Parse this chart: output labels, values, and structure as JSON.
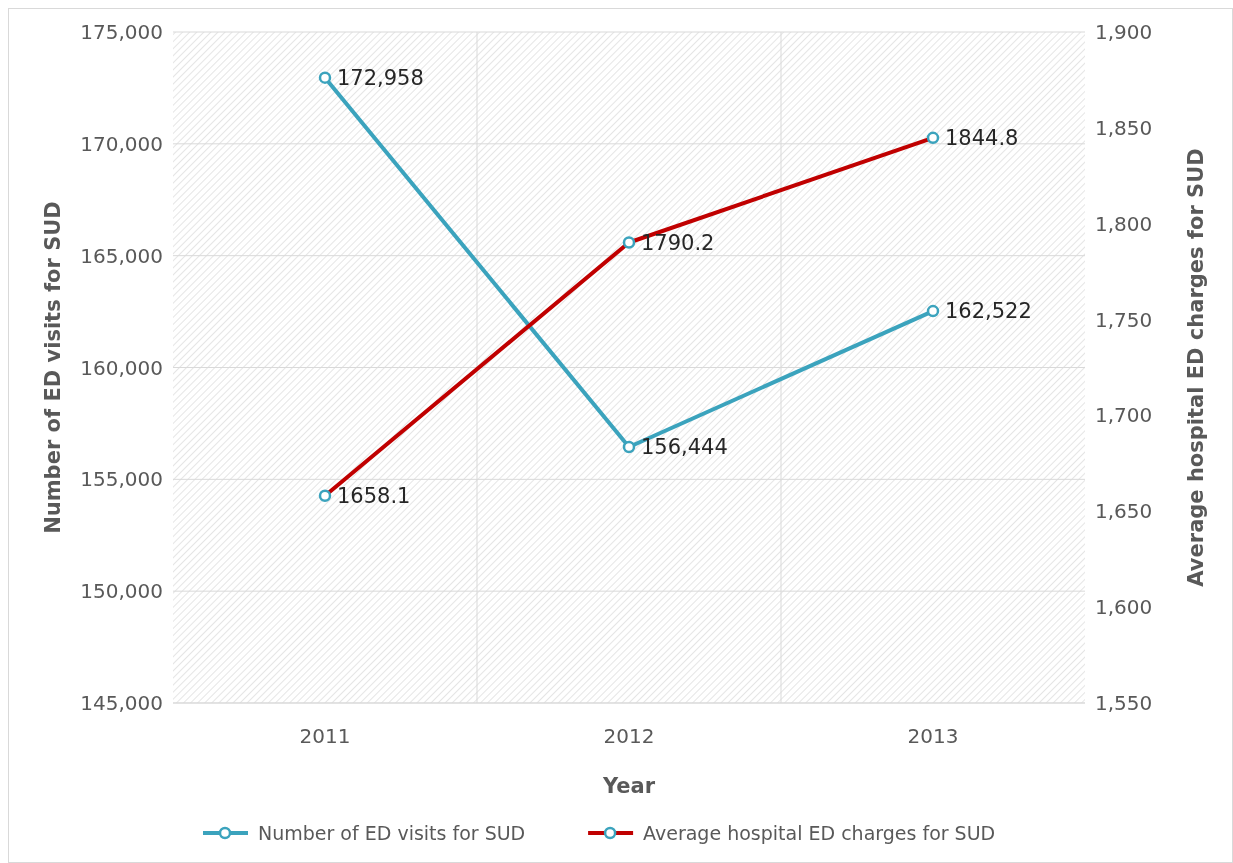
{
  "chart_data": {
    "type": "line",
    "xlabel": "Year",
    "ylabel": "Number of ED visits for SUD",
    "y2label": "Average hospital ED charges for SUD",
    "categories": [
      "2011",
      "2012",
      "2013"
    ],
    "series": [
      {
        "name": "Number of ED visits for SUD",
        "color": "#3ba3bd",
        "values": [
          172958,
          156444,
          162522
        ],
        "value_labels": [
          "172,958",
          "156,444",
          "162,522"
        ]
      },
      {
        "name": "Average hospital ED charges for SUD",
        "color": "#c00000",
        "axis": "y2",
        "values": [
          1658.1,
          1790.2,
          1844.8
        ],
        "value_labels": [
          "1658.1",
          "1790.2",
          "1844.8"
        ]
      }
    ],
    "ylim": [
      145000,
      175000
    ],
    "yticks": [
      {
        "value": 145000,
        "label": "145,000"
      },
      {
        "value": 150000,
        "label": "150,000"
      },
      {
        "value": 155000,
        "label": "155,000"
      },
      {
        "value": 160000,
        "label": "160,000"
      },
      {
        "value": 165000,
        "label": "165,000"
      },
      {
        "value": 170000,
        "label": "170,000"
      },
      {
        "value": 175000,
        "label": "175,000"
      }
    ],
    "y2lim": [
      1550,
      1900
    ],
    "y2ticks": [
      {
        "value": 1550,
        "label": "1,550"
      },
      {
        "value": 1600,
        "label": "1,600"
      },
      {
        "value": 1650,
        "label": "1,650"
      },
      {
        "value": 1700,
        "label": "1,700"
      },
      {
        "value": 1750,
        "label": "1,750"
      },
      {
        "value": 1800,
        "label": "1,800"
      },
      {
        "value": 1850,
        "label": "1,850"
      },
      {
        "value": 1900,
        "label": "1,900"
      }
    ],
    "grid": true,
    "legend": "bottom",
    "marker": "circle",
    "line_style": "solid"
  }
}
